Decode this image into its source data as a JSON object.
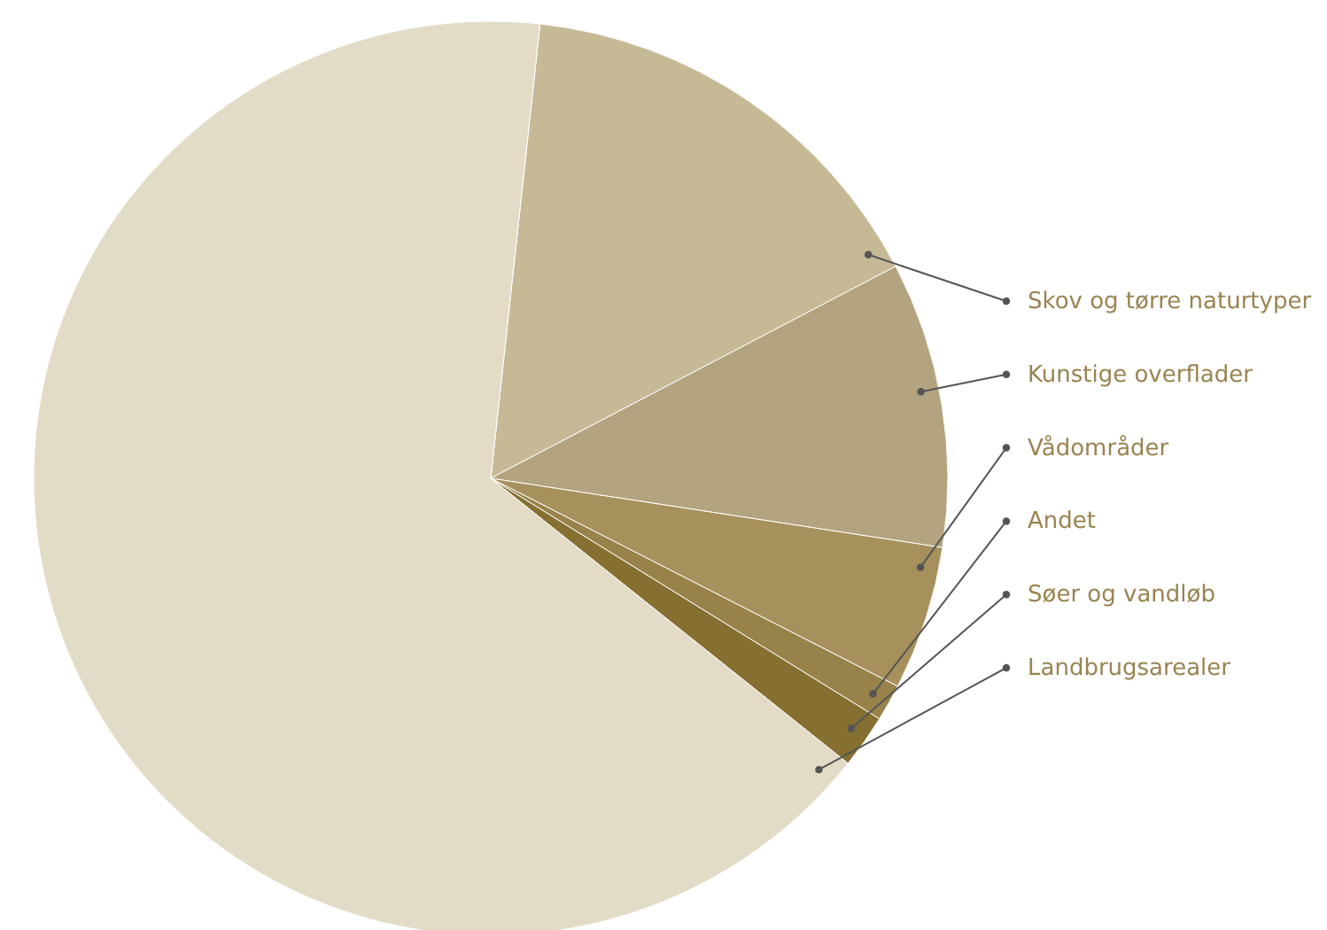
{
  "chart_data": {
    "type": "pie",
    "categories": [
      "Skov og tørre naturtyper",
      "Kunstige overflader",
      "Vådområder",
      "Andet",
      "Søer og vandløb",
      "Landbrugsarealer"
    ],
    "values": [
      15.6,
      10.1,
      5.1,
      1.3,
      1.9,
      66.0
    ],
    "colors": [
      "#c6b996",
      "#b3a47f",
      "#a6915c",
      "#978349",
      "#857032",
      "#e2dbc6"
    ]
  }
}
